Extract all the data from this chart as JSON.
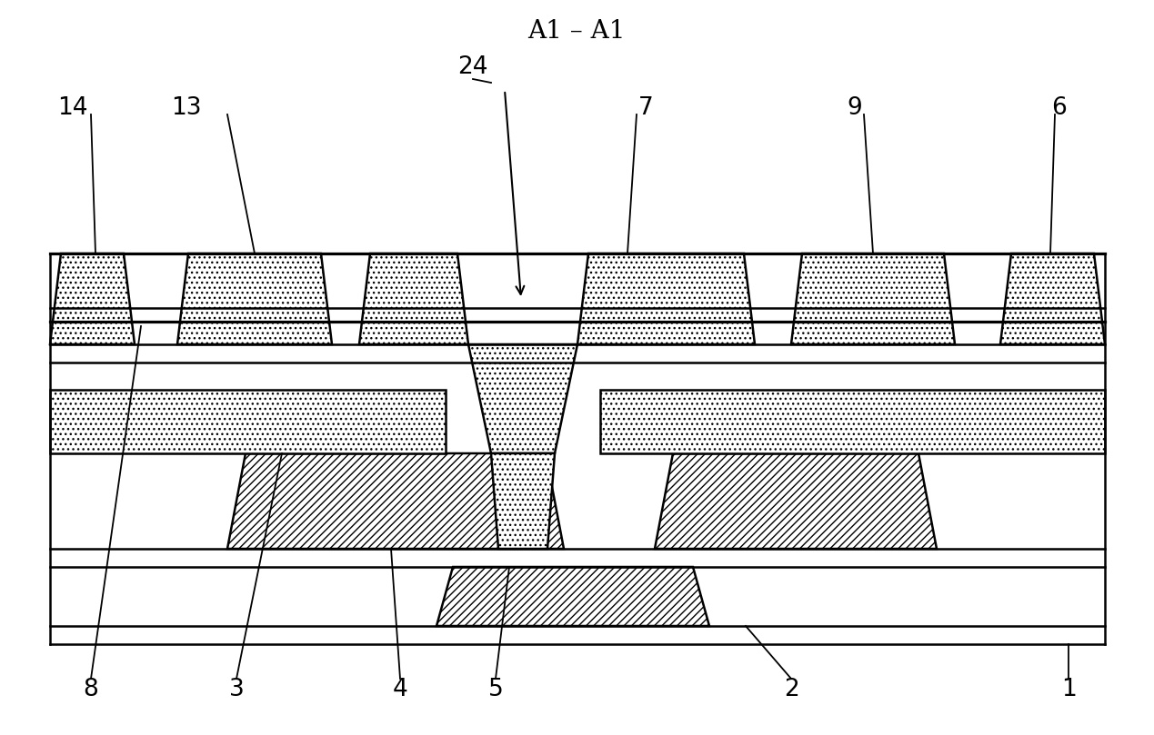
{
  "title": "A1 – A1",
  "title_fontsize": 20,
  "fig_width": 12.69,
  "fig_height": 8.09,
  "background_color": "#ffffff",
  "xlim": [
    0,
    1269
  ],
  "ylim": [
    0,
    809
  ],
  "label_fontsize": 19
}
